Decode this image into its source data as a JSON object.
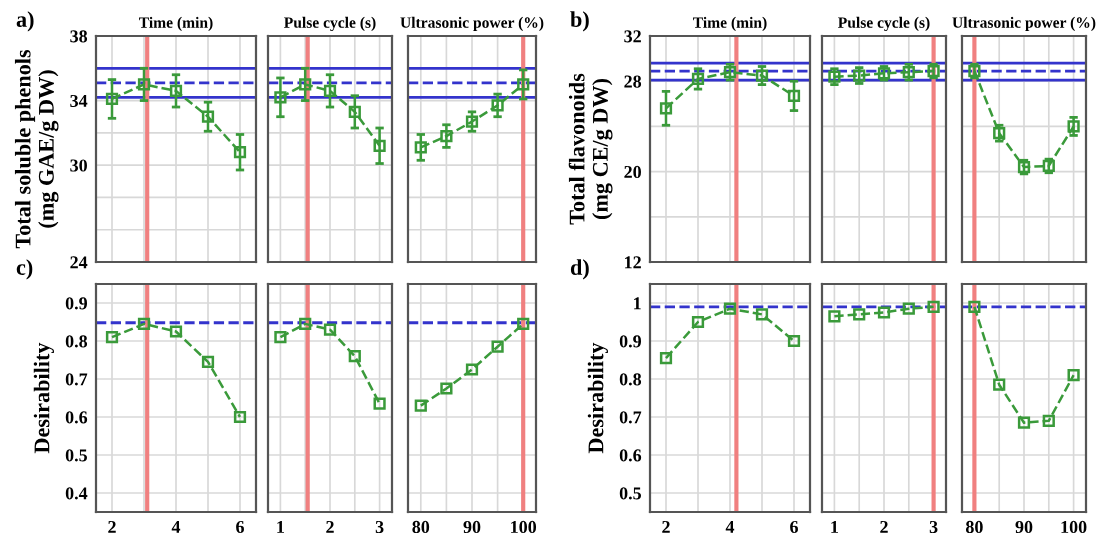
{
  "chart_data": [
    {
      "type": "line",
      "title": "Time (min)",
      "ylabel": "Total soluble phenols\n(mg GAE/g DW)",
      "annotations": [
        "a)"
      ],
      "tick_labels": "y",
      "grid": true,
      "marker": "square",
      "line_style": "dashed",
      "x": [
        2,
        3,
        4,
        5,
        6
      ],
      "xlim": [
        1.5,
        6.5
      ],
      "xticks": [
        2,
        {
          "value": 3,
          "label": null
        },
        4,
        {
          "value": 5,
          "label": null
        },
        6
      ],
      "ylim": [
        24,
        38
      ],
      "yticks": [
        24,
        {
          "value": 26,
          "label": null
        },
        {
          "value": 28,
          "label": null
        },
        30,
        {
          "value": 32,
          "label": null
        },
        34,
        {
          "value": 36,
          "label": null
        },
        38
      ],
      "series": [
        {
          "color": "#3a9a3a",
          "values": [
            34.1,
            35.0,
            34.6,
            33.0,
            30.8
          ],
          "errors": [
            1.2,
            1.0,
            1.0,
            0.9,
            1.1
          ]
        }
      ],
      "ref_lines": [
        {
          "axis": "y",
          "value": 36.0,
          "color": "#3333cc",
          "line_style": "solid"
        },
        {
          "axis": "y",
          "value": 34.2,
          "color": "#3333cc",
          "line_style": "solid"
        },
        {
          "axis": "y",
          "value": 35.1,
          "color": "#3333cc",
          "line_style": "dashed"
        },
        {
          "axis": "x",
          "value": 3.1,
          "color": "#f08080",
          "line_style": "solid"
        }
      ]
    },
    {
      "type": "line",
      "title": "Pulse cycle (s)",
      "tick_labels": false,
      "grid": true,
      "marker": "square",
      "line_style": "dashed",
      "x": [
        1,
        1.5,
        2,
        2.5,
        3
      ],
      "xlim": [
        0.75,
        3.25
      ],
      "xticks": [
        1,
        {
          "value": 1.5,
          "label": null
        },
        2,
        {
          "value": 2.5,
          "label": null
        },
        3
      ],
      "ylim": [
        24,
        38
      ],
      "yticks": [
        24,
        {
          "value": 26,
          "label": null
        },
        {
          "value": 28,
          "label": null
        },
        30,
        {
          "value": 32,
          "label": null
        },
        34,
        {
          "value": 36,
          "label": null
        },
        38
      ],
      "series": [
        {
          "color": "#3a9a3a",
          "values": [
            34.2,
            35.0,
            34.6,
            33.3,
            31.2
          ],
          "errors": [
            1.2,
            1.0,
            1.0,
            1.0,
            1.1
          ]
        }
      ],
      "ref_lines": [
        {
          "axis": "y",
          "value": 36.0,
          "color": "#3333cc",
          "line_style": "solid"
        },
        {
          "axis": "y",
          "value": 34.2,
          "color": "#3333cc",
          "line_style": "solid"
        },
        {
          "axis": "y",
          "value": 35.1,
          "color": "#3333cc",
          "line_style": "dashed"
        },
        {
          "axis": "x",
          "value": 1.55,
          "color": "#f08080",
          "line_style": "solid"
        }
      ]
    },
    {
      "type": "line",
      "title": "Ultrasonic power (%)",
      "tick_labels": false,
      "grid": true,
      "marker": "square",
      "line_style": "dashed",
      "x": [
        80,
        85,
        90,
        95,
        100
      ],
      "xlim": [
        77.5,
        102.5
      ],
      "xticks": [
        80,
        {
          "value": 85,
          "label": null
        },
        90,
        {
          "value": 95,
          "label": null
        },
        100
      ],
      "ylim": [
        24,
        38
      ],
      "yticks": [
        24,
        {
          "value": 26,
          "label": null
        },
        {
          "value": 28,
          "label": null
        },
        30,
        {
          "value": 32,
          "label": null
        },
        34,
        {
          "value": 36,
          "label": null
        },
        38
      ],
      "series": [
        {
          "color": "#3a9a3a",
          "values": [
            31.1,
            31.8,
            32.7,
            33.7,
            35.0
          ],
          "errors": [
            0.8,
            0.7,
            0.6,
            0.7,
            0.9
          ]
        }
      ],
      "ref_lines": [
        {
          "axis": "y",
          "value": 36.0,
          "color": "#3333cc",
          "line_style": "solid"
        },
        {
          "axis": "y",
          "value": 34.2,
          "color": "#3333cc",
          "line_style": "solid"
        },
        {
          "axis": "y",
          "value": 35.1,
          "color": "#3333cc",
          "line_style": "dashed"
        },
        {
          "axis": "x",
          "value": 100,
          "color": "#f08080",
          "line_style": "solid"
        }
      ]
    },
    {
      "type": "line",
      "title": "Time (min)",
      "ylabel": "Total flavonoids\n(mg CE/g DW)",
      "annotations": [
        "b)"
      ],
      "tick_labels": "y",
      "grid": true,
      "marker": "square",
      "line_style": "dashed",
      "x": [
        2,
        3,
        4,
        5,
        6
      ],
      "xlim": [
        1.5,
        6.5
      ],
      "xticks": [
        2,
        {
          "value": 3,
          "label": null
        },
        4,
        {
          "value": 5,
          "label": null
        },
        6
      ],
      "ylim": [
        12,
        32
      ],
      "yticks": [
        12,
        {
          "value": 16,
          "label": null
        },
        20,
        {
          "value": 24,
          "label": null
        },
        28,
        32
      ],
      "series": [
        {
          "color": "#3a9a3a",
          "values": [
            25.6,
            28.2,
            28.8,
            28.5,
            26.7
          ],
          "errors": [
            1.5,
            0.9,
            0.7,
            0.8,
            1.3
          ]
        }
      ],
      "ref_lines": [
        {
          "axis": "y",
          "value": 29.6,
          "color": "#3333cc",
          "line_style": "solid"
        },
        {
          "axis": "y",
          "value": 28.1,
          "color": "#3333cc",
          "line_style": "solid"
        },
        {
          "axis": "y",
          "value": 28.9,
          "color": "#3333cc",
          "line_style": "dashed"
        },
        {
          "axis": "x",
          "value": 4.2,
          "color": "#f08080",
          "line_style": "solid"
        }
      ]
    },
    {
      "type": "line",
      "title": "Pulse cycle (s)",
      "tick_labels": false,
      "grid": true,
      "marker": "square",
      "line_style": "dashed",
      "x": [
        1,
        1.5,
        2,
        2.5,
        3
      ],
      "xlim": [
        0.75,
        3.25
      ],
      "xticks": [
        1,
        {
          "value": 1.5,
          "label": null
        },
        2,
        {
          "value": 2.5,
          "label": null
        },
        3
      ],
      "ylim": [
        12,
        32
      ],
      "yticks": [
        12,
        {
          "value": 16,
          "label": null
        },
        20,
        {
          "value": 24,
          "label": null
        },
        28,
        32
      ],
      "series": [
        {
          "color": "#3a9a3a",
          "values": [
            28.4,
            28.5,
            28.7,
            28.8,
            28.9
          ],
          "errors": [
            0.7,
            0.7,
            0.6,
            0.7,
            0.6
          ]
        }
      ],
      "ref_lines": [
        {
          "axis": "y",
          "value": 29.6,
          "color": "#3333cc",
          "line_style": "solid"
        },
        {
          "axis": "y",
          "value": 28.1,
          "color": "#3333cc",
          "line_style": "solid"
        },
        {
          "axis": "y",
          "value": 28.9,
          "color": "#3333cc",
          "line_style": "dashed"
        },
        {
          "axis": "x",
          "value": 3,
          "color": "#f08080",
          "line_style": "solid"
        }
      ]
    },
    {
      "type": "line",
      "title": "Ultrasonic power (%)",
      "tick_labels": false,
      "grid": true,
      "marker": "square",
      "line_style": "dashed",
      "x": [
        80,
        85,
        90,
        95,
        100
      ],
      "xlim": [
        77.5,
        102.5
      ],
      "xticks": [
        80,
        {
          "value": 85,
          "label": null
        },
        90,
        {
          "value": 95,
          "label": null
        },
        100
      ],
      "ylim": [
        12,
        32
      ],
      "yticks": [
        12,
        {
          "value": 16,
          "label": null
        },
        20,
        {
          "value": 24,
          "label": null
        },
        28,
        32
      ],
      "series": [
        {
          "color": "#3a9a3a",
          "values": [
            28.9,
            23.4,
            20.4,
            20.5,
            24.0
          ],
          "errors": [
            0.6,
            0.7,
            0.6,
            0.6,
            0.8
          ]
        }
      ],
      "ref_lines": [
        {
          "axis": "y",
          "value": 29.6,
          "color": "#3333cc",
          "line_style": "solid"
        },
        {
          "axis": "y",
          "value": 28.1,
          "color": "#3333cc",
          "line_style": "solid"
        },
        {
          "axis": "y",
          "value": 28.9,
          "color": "#3333cc",
          "line_style": "dashed"
        },
        {
          "axis": "x",
          "value": 80,
          "color": "#f08080",
          "line_style": "solid"
        }
      ]
    },
    {
      "type": "line",
      "ylabel": "Desirability",
      "annotations": [
        "c)"
      ],
      "grid": true,
      "marker": "square",
      "line_style": "dashed",
      "x": [
        2,
        3,
        4,
        5,
        6
      ],
      "xlim": [
        1.5,
        6.5
      ],
      "xticks": [
        2,
        {
          "value": 3,
          "label": null
        },
        4,
        {
          "value": 5,
          "label": null
        },
        6
      ],
      "ylim": [
        0.35,
        0.95
      ],
      "yticks": [
        0.4,
        0.5,
        0.6,
        0.7,
        0.8,
        0.9
      ],
      "series": [
        {
          "color": "#3a9a3a",
          "values": [
            0.81,
            0.845,
            0.825,
            0.745,
            0.6
          ]
        }
      ],
      "ref_lines": [
        {
          "axis": "y",
          "value": 0.848,
          "color": "#3333cc",
          "line_style": "dashed"
        },
        {
          "axis": "x",
          "value": 3.1,
          "color": "#f08080",
          "line_style": "solid"
        }
      ]
    },
    {
      "type": "line",
      "tick_labels": "x",
      "grid": true,
      "marker": "square",
      "line_style": "dashed",
      "x": [
        1,
        1.5,
        2,
        2.5,
        3
      ],
      "xlim": [
        0.75,
        3.25
      ],
      "xticks": [
        1,
        {
          "value": 1.5,
          "label": null
        },
        2,
        {
          "value": 2.5,
          "label": null
        },
        3
      ],
      "ylim": [
        0.35,
        0.95
      ],
      "yticks": [
        0.4,
        0.5,
        0.6,
        0.7,
        0.8,
        0.9
      ],
      "series": [
        {
          "color": "#3a9a3a",
          "values": [
            0.81,
            0.845,
            0.83,
            0.76,
            0.635
          ]
        }
      ],
      "ref_lines": [
        {
          "axis": "y",
          "value": 0.848,
          "color": "#3333cc",
          "line_style": "dashed"
        },
        {
          "axis": "x",
          "value": 1.55,
          "color": "#f08080",
          "line_style": "solid"
        }
      ]
    },
    {
      "type": "line",
      "tick_labels": "x",
      "grid": true,
      "marker": "square",
      "line_style": "dashed",
      "x": [
        80,
        85,
        90,
        95,
        100
      ],
      "xlim": [
        77.5,
        102.5
      ],
      "xticks": [
        80,
        {
          "value": 85,
          "label": null
        },
        90,
        {
          "value": 95,
          "label": null
        },
        100
      ],
      "ylim": [
        0.35,
        0.95
      ],
      "yticks": [
        0.4,
        0.5,
        0.6,
        0.7,
        0.8,
        0.9
      ],
      "series": [
        {
          "color": "#3a9a3a",
          "values": [
            0.63,
            0.675,
            0.725,
            0.785,
            0.845
          ]
        }
      ],
      "ref_lines": [
        {
          "axis": "y",
          "value": 0.848,
          "color": "#3333cc",
          "line_style": "dashed"
        },
        {
          "axis": "x",
          "value": 100,
          "color": "#f08080",
          "line_style": "solid"
        }
      ]
    },
    {
      "type": "line",
      "ylabel": "Desirability",
      "annotations": [
        "d)"
      ],
      "grid": true,
      "marker": "square",
      "line_style": "dashed",
      "x": [
        2,
        3,
        4,
        5,
        6
      ],
      "xlim": [
        1.5,
        6.5
      ],
      "xticks": [
        2,
        {
          "value": 3,
          "label": null
        },
        4,
        {
          "value": 5,
          "label": null
        },
        6
      ],
      "ylim": [
        0.45,
        1.05
      ],
      "yticks": [
        0.5,
        0.6,
        0.7,
        0.8,
        0.9,
        1
      ],
      "series": [
        {
          "color": "#3a9a3a",
          "values": [
            0.855,
            0.95,
            0.985,
            0.97,
            0.9
          ]
        }
      ],
      "ref_lines": [
        {
          "axis": "y",
          "value": 0.99,
          "color": "#3333cc",
          "line_style": "dashed"
        },
        {
          "axis": "x",
          "value": 4.2,
          "color": "#f08080",
          "line_style": "solid"
        }
      ]
    },
    {
      "type": "line",
      "tick_labels": "x",
      "grid": true,
      "marker": "square",
      "line_style": "dashed",
      "x": [
        1,
        1.5,
        2,
        2.5,
        3
      ],
      "xlim": [
        0.75,
        3.25
      ],
      "xticks": [
        1,
        {
          "value": 1.5,
          "label": null
        },
        2,
        {
          "value": 2.5,
          "label": null
        },
        3
      ],
      "ylim": [
        0.45,
        1.05
      ],
      "yticks": [
        0.5,
        0.6,
        0.7,
        0.8,
        0.9,
        1
      ],
      "series": [
        {
          "color": "#3a9a3a",
          "values": [
            0.965,
            0.97,
            0.975,
            0.985,
            0.99
          ]
        }
      ],
      "ref_lines": [
        {
          "axis": "y",
          "value": 0.99,
          "color": "#3333cc",
          "line_style": "dashed"
        },
        {
          "axis": "x",
          "value": 3,
          "color": "#f08080",
          "line_style": "solid"
        }
      ]
    },
    {
      "type": "line",
      "tick_labels": "x",
      "grid": true,
      "marker": "square",
      "line_style": "dashed",
      "x": [
        80,
        85,
        90,
        95,
        100
      ],
      "xlim": [
        77.5,
        102.5
      ],
      "xticks": [
        80,
        {
          "value": 85,
          "label": null
        },
        90,
        {
          "value": 95,
          "label": null
        },
        100
      ],
      "ylim": [
        0.45,
        1.05
      ],
      "yticks": [
        0.5,
        0.6,
        0.7,
        0.8,
        0.9,
        1
      ],
      "series": [
        {
          "color": "#3a9a3a",
          "values": [
            0.99,
            0.785,
            0.685,
            0.69,
            0.81
          ]
        }
      ],
      "ref_lines": [
        {
          "axis": "y",
          "value": 0.99,
          "color": "#3333cc",
          "line_style": "dashed"
        },
        {
          "axis": "x",
          "value": 80,
          "color": "#f08080",
          "line_style": "solid"
        }
      ]
    }
  ]
}
